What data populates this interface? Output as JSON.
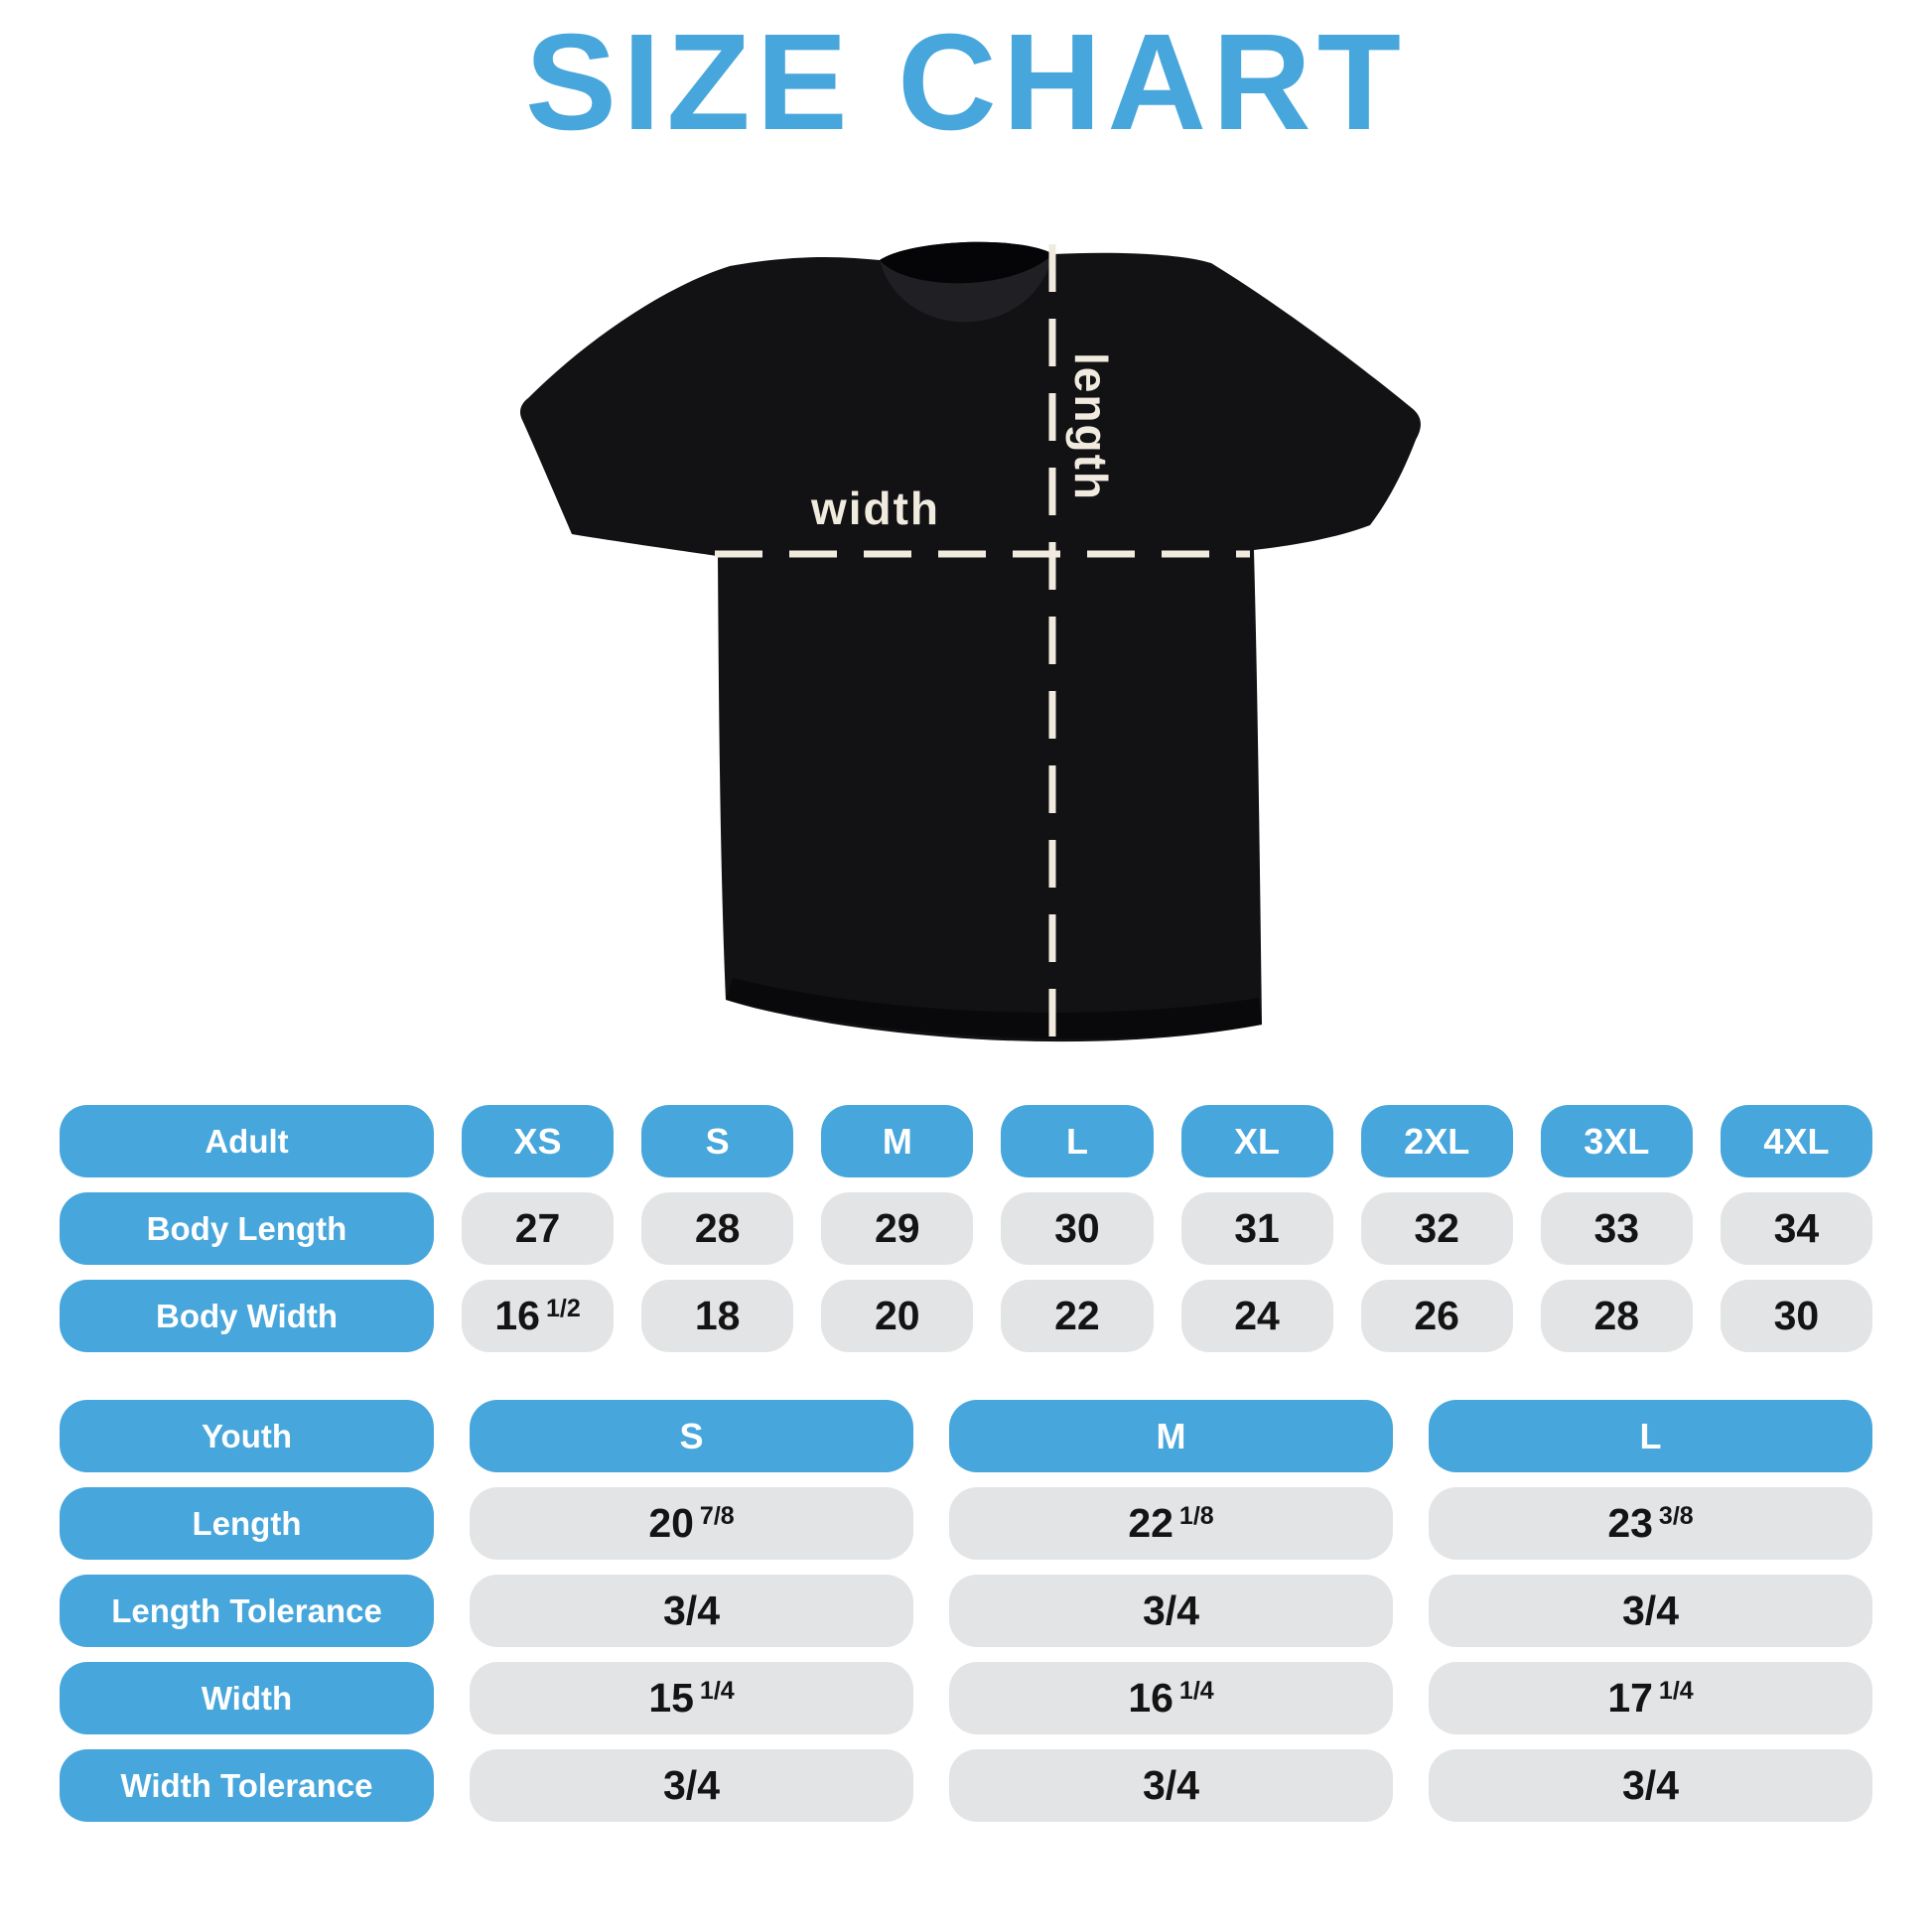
{
  "title": "SIZE CHART",
  "diagram": {
    "width_label": "width",
    "length_label": "length"
  },
  "adult_table": {
    "header": {
      "label": "Adult",
      "sizes": [
        "XS",
        "S",
        "M",
        "L",
        "XL",
        "2XL",
        "3XL",
        "4XL"
      ]
    },
    "rows": [
      {
        "label": "Body Length",
        "values": [
          {
            "main": "27"
          },
          {
            "main": "28"
          },
          {
            "main": "29"
          },
          {
            "main": "30"
          },
          {
            "main": "31"
          },
          {
            "main": "32"
          },
          {
            "main": "33"
          },
          {
            "main": "34"
          }
        ]
      },
      {
        "label": "Body Width",
        "values": [
          {
            "main": "16",
            "frac": "1/2"
          },
          {
            "main": "18"
          },
          {
            "main": "20"
          },
          {
            "main": "22"
          },
          {
            "main": "24"
          },
          {
            "main": "26"
          },
          {
            "main": "28"
          },
          {
            "main": "30"
          }
        ]
      }
    ]
  },
  "youth_table": {
    "header": {
      "label": "Youth",
      "sizes": [
        "S",
        "M",
        "L"
      ]
    },
    "rows": [
      {
        "label": "Length",
        "values": [
          {
            "main": "20",
            "frac": "7/8"
          },
          {
            "main": "22",
            "frac": "1/8"
          },
          {
            "main": "23",
            "frac": "3/8"
          }
        ]
      },
      {
        "label": "Length Tolerance",
        "values": [
          {
            "main": "3/4"
          },
          {
            "main": "3/4"
          },
          {
            "main": "3/4"
          }
        ]
      },
      {
        "label": "Width",
        "values": [
          {
            "main": "15",
            "frac": "1/4"
          },
          {
            "main": "16",
            "frac": "1/4"
          },
          {
            "main": "17",
            "frac": "1/4"
          }
        ]
      },
      {
        "label": "Width Tolerance",
        "values": [
          {
            "main": "3/4"
          },
          {
            "main": "3/4"
          },
          {
            "main": "3/4"
          }
        ]
      }
    ]
  },
  "colors": {
    "accent": "#47A6DB",
    "cell_background": "#E3E4E6",
    "value_text": "#141414",
    "measure_lines": "#F1EBDF",
    "shirt": "#121214",
    "background": "#FFFFFF"
  }
}
